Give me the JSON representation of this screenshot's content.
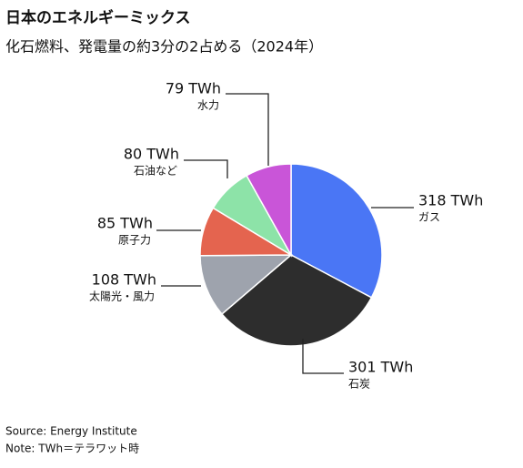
{
  "chart_data": {
    "type": "pie",
    "title": "日本のエネルギーミックス",
    "subtitle": "化石燃料、発電量の約3分の2占める（2024年）",
    "categories": [
      "ガス",
      "石炭",
      "太陽光・風力",
      "原子力",
      "石油など",
      "水力"
    ],
    "values": [
      318,
      301,
      108,
      85,
      80,
      79
    ],
    "value_labels": [
      "318 TWh",
      "301 TWh",
      "108 TWh",
      "85 TWh",
      "80 TWh",
      "79 TWh"
    ],
    "colors": [
      "#4a76f5",
      "#2d2d2d",
      "#9ea3ad",
      "#e4644f",
      "#8de3a8",
      "#c955d8"
    ],
    "notes": [
      "Source: Energy Institute",
      "Note: TWh＝テラワット時"
    ]
  }
}
